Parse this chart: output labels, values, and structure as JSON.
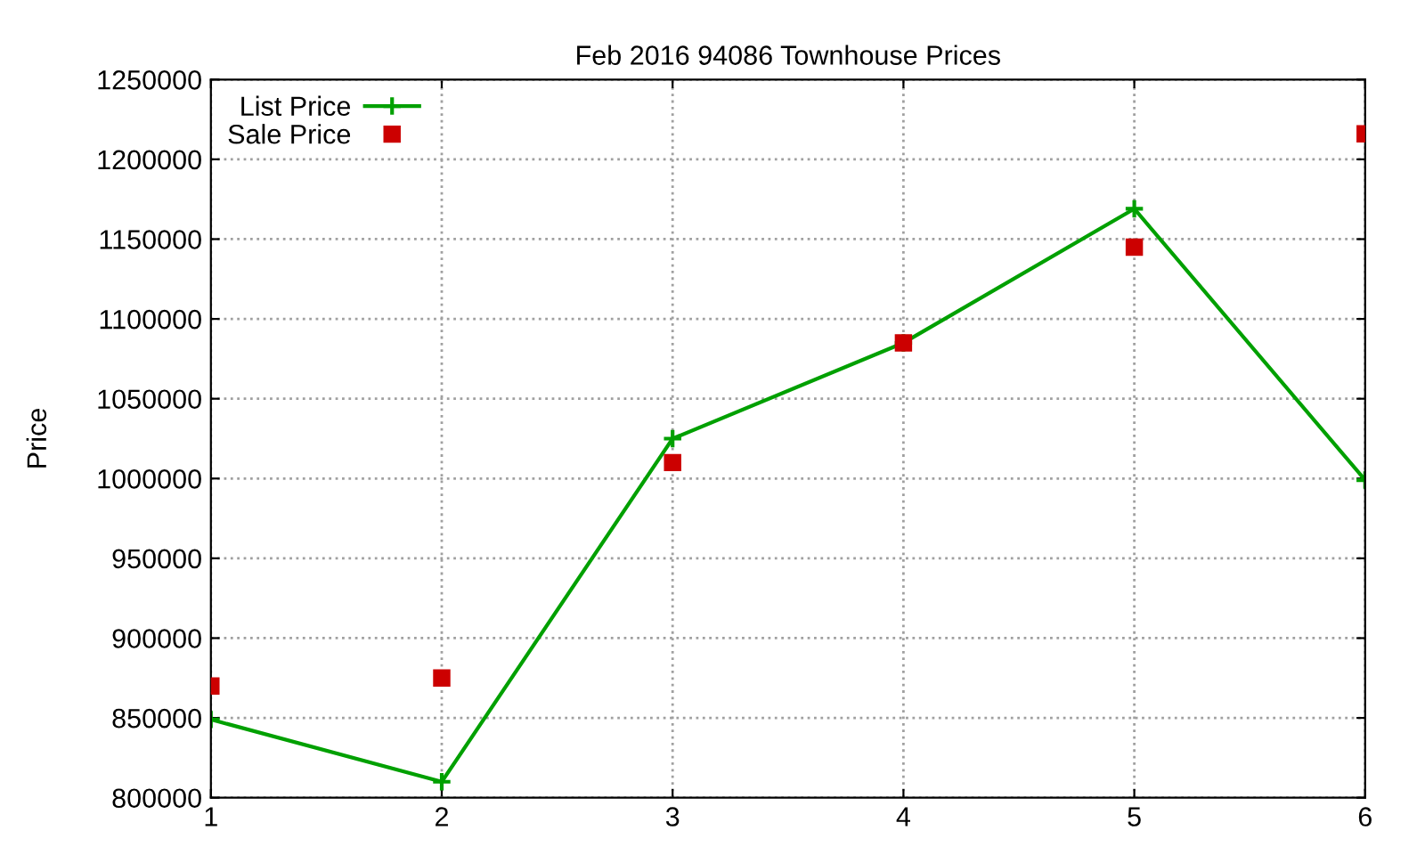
{
  "chart_data": {
    "type": "line",
    "title": "Feb 2016 94086 Townhouse Prices",
    "ylabel": "Price",
    "x": [
      1,
      2,
      3,
      4,
      5,
      6
    ],
    "series": [
      {
        "name": "List Price",
        "color": "#00a000",
        "marker": "cross",
        "line_style": "solid",
        "values": [
          849000,
          810000,
          1025000,
          1085000,
          1169000,
          999000
        ]
      },
      {
        "name": "Sale Price",
        "type": "scatter",
        "color": "#cc0000",
        "marker": "square",
        "values": [
          870000,
          875000,
          1010000,
          1085000,
          1145000,
          1216000
        ]
      }
    ],
    "xlim": [
      1,
      6
    ],
    "xticks": [
      1,
      2,
      3,
      4,
      5,
      6
    ],
    "ylim": [
      800000,
      1250000
    ],
    "yticks": [
      800000,
      850000,
      900000,
      950000,
      1000000,
      1050000,
      1100000,
      1150000,
      1200000,
      1250000
    ],
    "grid": true,
    "legend": "top left"
  }
}
